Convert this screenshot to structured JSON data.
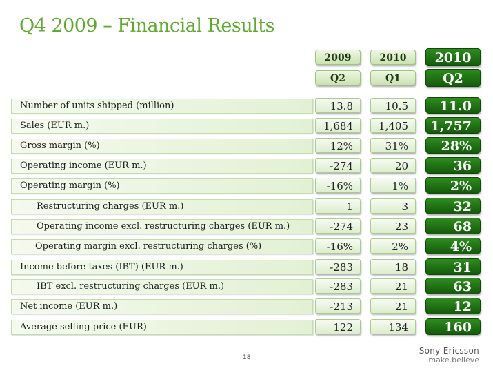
{
  "title": "Q4 2009 – Financial Results",
  "columns": [
    {
      "year": "2009",
      "quarter": "Q2"
    },
    {
      "year": "2010",
      "quarter": "Q1"
    },
    {
      "year": "2010",
      "quarter": "Q2"
    }
  ],
  "rows": [
    {
      "label": "Number of units shipped (million)",
      "v1": "13.8",
      "v2": "10.5",
      "v3": "11.0"
    },
    {
      "label": "Sales (EUR m.)",
      "v1": "1,684",
      "v2": "1,405",
      "v3": "1,757"
    },
    {
      "label": "Gross margin (%)",
      "v1": "12%",
      "v2": "31%",
      "v3": "28%"
    },
    {
      "label": "Operating income (EUR m.)",
      "v1": "-274",
      "v2": "20",
      "v3": "36"
    },
    {
      "label": "Operating margin (%)",
      "v1": "-16%",
      "v2": "1%",
      "v3": "2%"
    },
    {
      "label": "Restructuring charges (EUR m.)",
      "v1": "1",
      "v2": "3",
      "v3": "32"
    },
    {
      "label": "Operating income excl. restructuring charges (EUR m.)",
      "v1": "-274",
      "v2": "23",
      "v3": "68"
    },
    {
      "label": "Operating margin excl. restructuring charges (%)",
      "v1": "-16%",
      "v2": "2%",
      "v3": "4%"
    },
    {
      "label": "Income before taxes (IBT) (EUR m.)",
      "v1": "-283",
      "v2": "18",
      "v3": "31"
    },
    {
      "label": "IBT excl. restructuring charges (EUR m.)",
      "v1": "-283",
      "v2": "21",
      "v3": "63"
    },
    {
      "label": "Net income (EUR m.)",
      "v1": "-213",
      "v2": "21",
      "v3": "12"
    },
    {
      "label": "Average selling price (EUR)",
      "v1": "122",
      "v2": "134",
      "v3": "160"
    }
  ],
  "page_number": "18",
  "logo": {
    "brand": "Sony Ericsson",
    "tagline": "make.believe"
  },
  "colors": {
    "accent_green": "#5fa92f",
    "dark_green": "#155d0c"
  }
}
